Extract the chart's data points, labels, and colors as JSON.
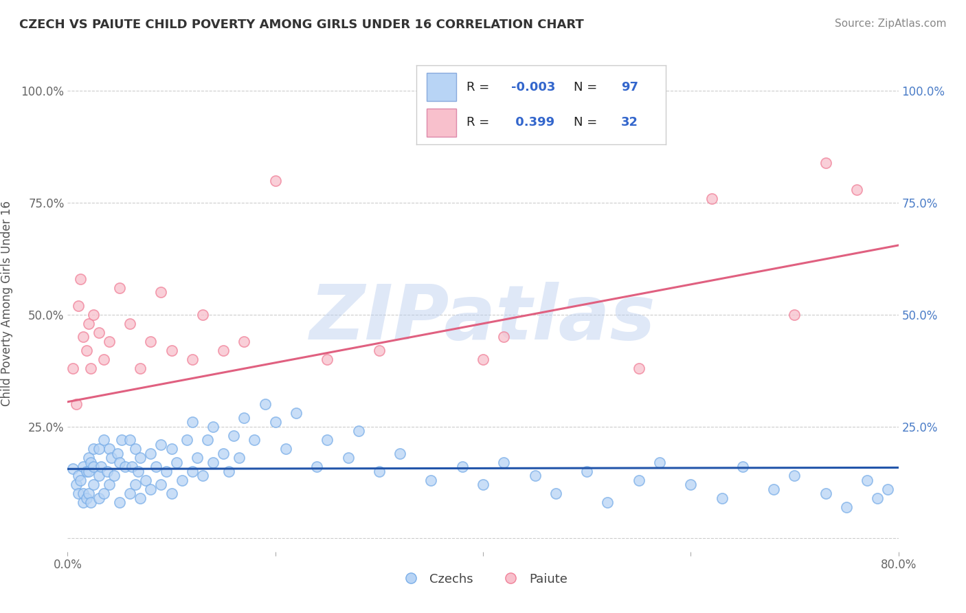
{
  "title": "CZECH VS PAIUTE CHILD POVERTY AMONG GIRLS UNDER 16 CORRELATION CHART",
  "source": "Source: ZipAtlas.com",
  "ylabel": "Child Poverty Among Girls Under 16",
  "watermark": "ZIPatlas",
  "xmin": 0.0,
  "xmax": 0.8,
  "ymin": -0.03,
  "ymax": 1.08,
  "blue_color": "#7aaee8",
  "pink_color": "#f08098",
  "blue_line_color": "#2255aa",
  "pink_line_color": "#e06080",
  "blue_dot_facecolor": "#b8d4f5",
  "pink_dot_facecolor": "#f8c0cc",
  "background_color": "#ffffff",
  "grid_color": "#cccccc",
  "legend_r_color": "#3366cc",
  "title_color": "#333333",
  "czech_R": -0.003,
  "czech_N": 97,
  "paiute_R": 0.399,
  "paiute_N": 32,
  "czech_line_y0": 0.155,
  "czech_line_y1": 0.158,
  "paiute_line_y0": 0.305,
  "paiute_line_y1": 0.655,
  "czech_x": [
    0.005,
    0.008,
    0.01,
    0.01,
    0.012,
    0.015,
    0.015,
    0.015,
    0.018,
    0.018,
    0.02,
    0.02,
    0.02,
    0.022,
    0.022,
    0.025,
    0.025,
    0.025,
    0.03,
    0.03,
    0.03,
    0.032,
    0.035,
    0.035,
    0.038,
    0.04,
    0.04,
    0.042,
    0.045,
    0.048,
    0.05,
    0.05,
    0.052,
    0.055,
    0.06,
    0.06,
    0.062,
    0.065,
    0.065,
    0.068,
    0.07,
    0.07,
    0.075,
    0.08,
    0.08,
    0.085,
    0.09,
    0.09,
    0.095,
    0.1,
    0.1,
    0.105,
    0.11,
    0.115,
    0.12,
    0.12,
    0.125,
    0.13,
    0.135,
    0.14,
    0.14,
    0.15,
    0.155,
    0.16,
    0.165,
    0.17,
    0.18,
    0.19,
    0.2,
    0.21,
    0.22,
    0.24,
    0.25,
    0.27,
    0.28,
    0.3,
    0.32,
    0.35,
    0.38,
    0.4,
    0.42,
    0.45,
    0.47,
    0.5,
    0.52,
    0.55,
    0.57,
    0.6,
    0.63,
    0.65,
    0.68,
    0.7,
    0.73,
    0.75,
    0.77,
    0.78,
    0.79
  ],
  "czech_y": [
    0.155,
    0.12,
    0.1,
    0.14,
    0.13,
    0.08,
    0.1,
    0.16,
    0.09,
    0.15,
    0.1,
    0.15,
    0.18,
    0.08,
    0.17,
    0.12,
    0.16,
    0.2,
    0.09,
    0.14,
    0.2,
    0.16,
    0.1,
    0.22,
    0.15,
    0.12,
    0.2,
    0.18,
    0.14,
    0.19,
    0.08,
    0.17,
    0.22,
    0.16,
    0.1,
    0.22,
    0.16,
    0.12,
    0.2,
    0.15,
    0.09,
    0.18,
    0.13,
    0.11,
    0.19,
    0.16,
    0.12,
    0.21,
    0.15,
    0.1,
    0.2,
    0.17,
    0.13,
    0.22,
    0.15,
    0.26,
    0.18,
    0.14,
    0.22,
    0.17,
    0.25,
    0.19,
    0.15,
    0.23,
    0.18,
    0.27,
    0.22,
    0.3,
    0.26,
    0.2,
    0.28,
    0.16,
    0.22,
    0.18,
    0.24,
    0.15,
    0.19,
    0.13,
    0.16,
    0.12,
    0.17,
    0.14,
    0.1,
    0.15,
    0.08,
    0.13,
    0.17,
    0.12,
    0.09,
    0.16,
    0.11,
    0.14,
    0.1,
    0.07,
    0.13,
    0.09,
    0.11
  ],
  "paiute_x": [
    0.005,
    0.008,
    0.01,
    0.012,
    0.015,
    0.018,
    0.02,
    0.022,
    0.025,
    0.03,
    0.035,
    0.04,
    0.05,
    0.06,
    0.07,
    0.08,
    0.09,
    0.1,
    0.12,
    0.13,
    0.15,
    0.17,
    0.2,
    0.25,
    0.3,
    0.4,
    0.42,
    0.55,
    0.62,
    0.7,
    0.73,
    0.76
  ],
  "paiute_y": [
    0.38,
    0.3,
    0.52,
    0.58,
    0.45,
    0.42,
    0.48,
    0.38,
    0.5,
    0.46,
    0.4,
    0.44,
    0.56,
    0.48,
    0.38,
    0.44,
    0.55,
    0.42,
    0.4,
    0.5,
    0.42,
    0.44,
    0.8,
    0.4,
    0.42,
    0.4,
    0.45,
    0.38,
    0.76,
    0.5,
    0.84,
    0.78
  ]
}
